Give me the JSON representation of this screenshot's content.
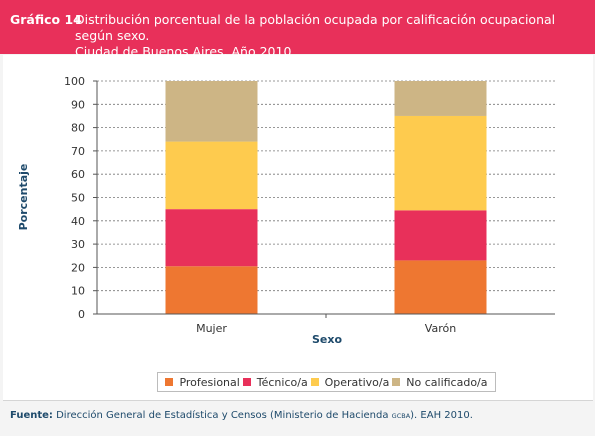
{
  "header": {
    "label": "Gráfico 14",
    "title_line1": "Distribución porcentual de la población ocupada por calificación ocupacional según sexo.",
    "title_line2": "Ciudad de Buenos Aires. Año 2010"
  },
  "source": {
    "label": "Fuente:",
    "text_before": "Dirección General de Estadística y Censos (Ministerio de Hacienda",
    "small": "GCBA",
    "text_after": "). EAH 2010."
  },
  "chart_data": {
    "type": "bar",
    "stacked": true,
    "categories": [
      "Mujer",
      "Varón"
    ],
    "xlabel": "Sexo",
    "ylabel": "Porcentaje",
    "ylim": [
      0,
      100
    ],
    "yticks": [
      0,
      10,
      20,
      30,
      40,
      50,
      60,
      70,
      80,
      90,
      100
    ],
    "grid": "horizontal dashed",
    "legend_position": "bottom",
    "series": [
      {
        "name": "Profesional",
        "color": "#ee7731",
        "values": [
          20.5,
          23.0
        ]
      },
      {
        "name": "Técnico/a",
        "color": "#e8305a",
        "values": [
          24.5,
          21.5
        ]
      },
      {
        "name": "Operativo/a",
        "color": "#fecb4e",
        "values": [
          29.0,
          40.5
        ]
      },
      {
        "name": "No calificado/a",
        "color": "#cdb585",
        "values": [
          26.0,
          15.0
        ]
      }
    ]
  }
}
